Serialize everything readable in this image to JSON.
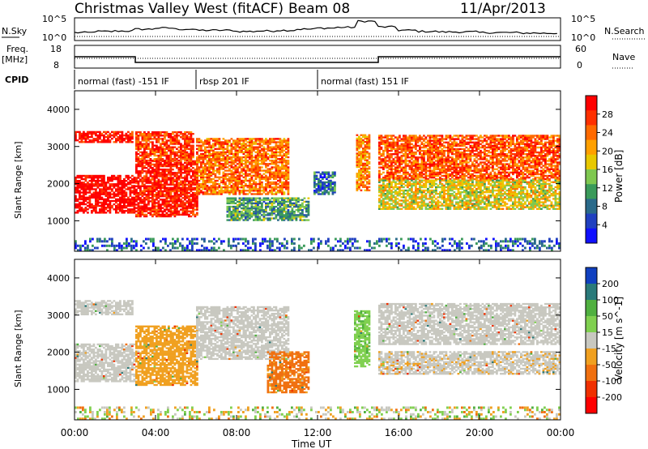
{
  "header": {
    "title": "Christmas Valley West (fitACF)",
    "beam": "Beam 08",
    "date": "11/Apr/2013"
  },
  "top_panels": {
    "nsky_label": "N.Sky",
    "nsky_ticks": [
      "10^5",
      "10^0"
    ],
    "nsearch_label": "N.Search",
    "nsearch_ticks": [
      "10^5",
      "10^0"
    ],
    "freq_label_1": "Freq.",
    "freq_label_2": "[MHz]",
    "freq_ticks": [
      "18",
      "8"
    ],
    "nave_label": "Nave",
    "nave_ticks": [
      "60",
      "0"
    ],
    "cpid_label": "CPID",
    "cpid_segments": [
      {
        "label": "normal (fast) -151 IF",
        "start_hour": 0.0
      },
      {
        "label": "rbsp 201 IF",
        "start_hour": 6.0
      },
      {
        "label": "normal (fast) 151 IF",
        "start_hour": 12.0
      }
    ]
  },
  "power_panel": {
    "ylabel": "Slant Range [km]",
    "yticks": [
      "4000",
      "3000",
      "2000",
      "1000"
    ],
    "colorbar_label": "Power [dB]",
    "colorbar_ticks": [
      "28",
      "24",
      "20",
      "16",
      "12",
      "8",
      "4"
    ],
    "colorbar_colors": [
      "#ff0000",
      "#ff3000",
      "#ff6a00",
      "#ffa000",
      "#e8c800",
      "#7fc850",
      "#3a9a5a",
      "#2a6a8a",
      "#2040c0",
      "#1010ff"
    ]
  },
  "velocity_panel": {
    "ylabel": "Slant Range [km]",
    "yticks": [
      "4000",
      "3000",
      "2000",
      "1000"
    ],
    "colorbar_label": "Velocity [m s^-1]",
    "colorbar_ticks": [
      "200",
      "100",
      "50",
      "15",
      "-15",
      "-50",
      "-100",
      "-200"
    ],
    "colorbar_colors": [
      "#1040c0",
      "#2a7a7a",
      "#50b040",
      "#80d050",
      "#c8c8c0",
      "#f0a020",
      "#f07010",
      "#f03000",
      "#ff0000"
    ]
  },
  "x_axis": {
    "label": "Time UT",
    "ticks": [
      "00:00",
      "04:00",
      "08:00",
      "12:00",
      "16:00",
      "20:00",
      "00:00"
    ]
  },
  "chart_data": {
    "type": "heatmap",
    "title": "Christmas Valley West (fitACF)",
    "xlabel": "Time UT",
    "ylabel": "Slant Range [km]",
    "xlim_hours": [
      0,
      24
    ],
    "ylim_km": [
      180,
      4500
    ],
    "series": [
      {
        "name": "Power [dB]",
        "clim": [
          0,
          30
        ]
      },
      {
        "name": "Velocity [m s^-1]",
        "clim": [
          -250,
          250
        ]
      }
    ],
    "power_bands": [
      {
        "t": [
          0.0,
          2.9
        ],
        "r": [
          3100,
          3400
        ],
        "level": 0.95
      },
      {
        "t": [
          0.0,
          3.0
        ],
        "r": [
          1200,
          2200
        ],
        "level": 1.0
      },
      {
        "t": [
          3.0,
          6.0
        ],
        "r": [
          1100,
          2600
        ],
        "level": 0.92
      },
      {
        "t": [
          3.0,
          5.8
        ],
        "r": [
          2600,
          3400
        ],
        "level": 0.85
      },
      {
        "t": [
          6.0,
          10.5
        ],
        "r": [
          1700,
          3200
        ],
        "level": 0.75
      },
      {
        "t": [
          7.5,
          11.5
        ],
        "r": [
          1000,
          1600
        ],
        "level": 0.35
      },
      {
        "t": [
          11.8,
          12.8
        ],
        "r": [
          1700,
          2300
        ],
        "level": 0.25
      },
      {
        "t": [
          13.9,
          14.5
        ],
        "r": [
          1800,
          3300
        ],
        "level": 0.7
      },
      {
        "t": [
          15.0,
          24.0
        ],
        "r": [
          2100,
          3300
        ],
        "level": 0.8
      },
      {
        "t": [
          15.0,
          24.0
        ],
        "r": [
          1300,
          2100
        ],
        "level": 0.55
      }
    ],
    "velocity_bands": [
      {
        "t": [
          0.0,
          3.0
        ],
        "r": [
          1200,
          2200
        ],
        "v": 0
      },
      {
        "t": [
          0.0,
          2.9
        ],
        "r": [
          3000,
          3400
        ],
        "v": 0
      },
      {
        "t": [
          3.0,
          6.0
        ],
        "r": [
          1100,
          2700
        ],
        "v": -30
      },
      {
        "t": [
          6.0,
          10.5
        ],
        "r": [
          1800,
          3200
        ],
        "v": 0
      },
      {
        "t": [
          9.5,
          11.5
        ],
        "r": [
          900,
          2000
        ],
        "v": -60
      },
      {
        "t": [
          13.8,
          14.5
        ],
        "r": [
          1600,
          3100
        ],
        "v": 40
      },
      {
        "t": [
          15.0,
          24.0
        ],
        "r": [
          2200,
          3300
        ],
        "v": 0
      },
      {
        "t": [
          15.0,
          24.0
        ],
        "r": [
          1400,
          2000
        ],
        "v": -5
      }
    ],
    "nsky_trace_log": [
      0.35,
      0.4,
      0.42,
      0.5,
      0.55,
      0.5,
      0.45,
      0.45,
      0.4,
      0.42,
      0.45,
      0.5,
      0.55,
      0.58,
      0.85,
      0.6,
      0.45,
      0.4,
      0.38,
      0.38,
      0.35,
      0.35,
      0.33,
      0.32
    ],
    "freq_mhz_trace": [
      {
        "t": [
          0.0,
          3.0
        ],
        "value": 13
      },
      {
        "t": [
          3.0,
          15.0
        ],
        "value": 10.5
      },
      {
        "t": [
          15.0,
          24.0
        ],
        "value": 13
      }
    ]
  }
}
